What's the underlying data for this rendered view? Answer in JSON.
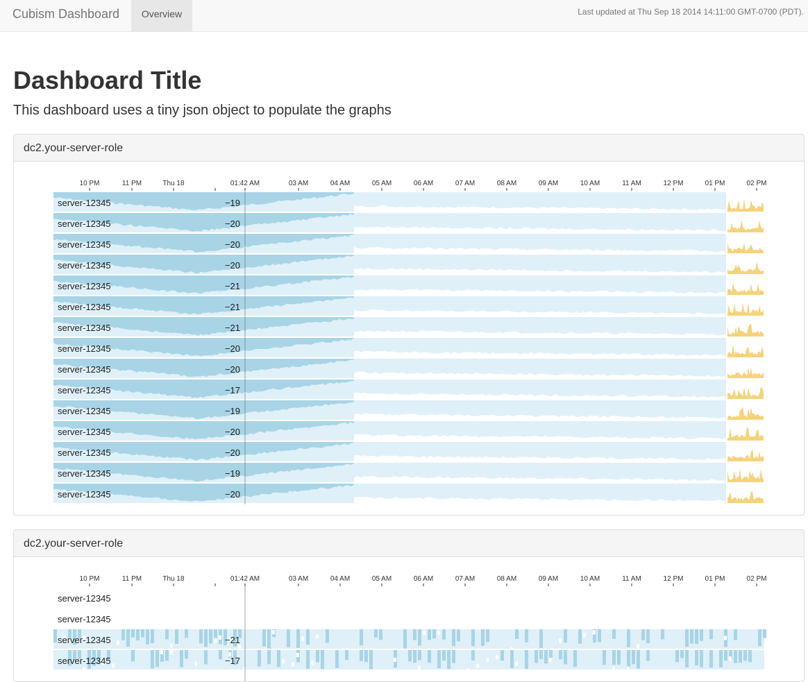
{
  "navbar": {
    "brand": "Cubism Dashboard",
    "tab": "Overview",
    "status": "Last updated at Thu Sep 18 2014 14:11:00 GMT-0700 (PDT)."
  },
  "page": {
    "title": "Dashboard Title",
    "subtitle": "This dashboard uses a tiny json object to populate the graphs"
  },
  "colors": {
    "band_light": "#dff0f8",
    "band_dark": "#a8d4e6",
    "band_mid": "#c7e5f1",
    "spike_yellow": "#f6d37a",
    "tick": "#333333",
    "rule": "#666666"
  },
  "panels": [
    {
      "title": "dc2.your-server-role",
      "axis_ticks": [
        "10 PM",
        "11 PM",
        "Thu 18",
        "01:42 AM",
        "03 AM",
        "04 AM",
        "05 AM",
        "06 AM",
        "07 AM",
        "08 AM",
        "09 AM",
        "10 AM",
        "11 AM",
        "12 PM",
        "01 PM",
        "02 PM"
      ],
      "rows": [
        {
          "label": "server-12345",
          "value": "−19"
        },
        {
          "label": "server-12345",
          "value": "−20"
        },
        {
          "label": "server-12345",
          "value": "−20"
        },
        {
          "label": "server-12345",
          "value": "−20"
        },
        {
          "label": "server-12345",
          "value": "−21"
        },
        {
          "label": "server-12345",
          "value": "−21"
        },
        {
          "label": "server-12345",
          "value": "−21"
        },
        {
          "label": "server-12345",
          "value": "−20"
        },
        {
          "label": "server-12345",
          "value": "−20"
        },
        {
          "label": "server-12345",
          "value": "−17"
        },
        {
          "label": "server-12345",
          "value": "−19"
        },
        {
          "label": "server-12345",
          "value": "−20"
        },
        {
          "label": "server-12345",
          "value": "−20"
        },
        {
          "label": "server-12345",
          "value": "−19"
        },
        {
          "label": "server-12345",
          "value": "−20"
        }
      ]
    },
    {
      "title": "dc2.your-server-role",
      "axis_ticks": [
        "10 PM",
        "11 PM",
        "Thu 18",
        "01:42 AM",
        "03 AM",
        "04 AM",
        "05 AM",
        "06 AM",
        "07 AM",
        "08 AM",
        "09 AM",
        "10 AM",
        "11 AM",
        "12 PM",
        "01 PM",
        "02 PM"
      ],
      "rows": [
        {
          "label": "server-12345",
          "value": ""
        },
        {
          "label": "server-12345",
          "value": ""
        },
        {
          "label": "server-12345",
          "value": "−21"
        },
        {
          "label": "server-12345",
          "value": "−17"
        }
      ]
    }
  ]
}
